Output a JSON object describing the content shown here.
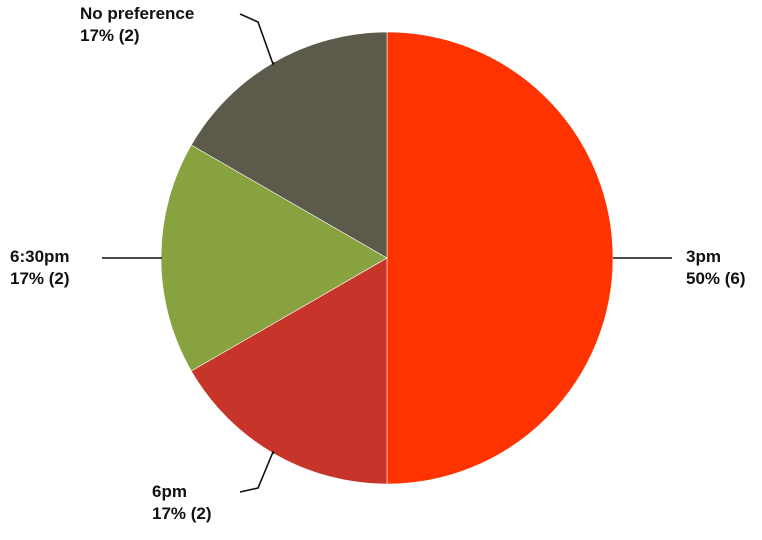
{
  "chart_data": {
    "type": "pie",
    "title": "",
    "slices": [
      {
        "label": "3pm",
        "percent_text": "50% (6)",
        "value": 6,
        "color": "#ff3300"
      },
      {
        "label": "6pm",
        "percent_text": "17% (2)",
        "value": 2,
        "color": "#c7352a"
      },
      {
        "label": "6:30pm",
        "percent_text": "17% (2)",
        "value": 2,
        "color": "#88a23f"
      },
      {
        "label": "No preference",
        "percent_text": "17% (2)",
        "value": 2,
        "color": "#5c5a4b"
      }
    ],
    "start_angle": "12 o'clock",
    "direction": "clockwise",
    "legend": "none"
  }
}
